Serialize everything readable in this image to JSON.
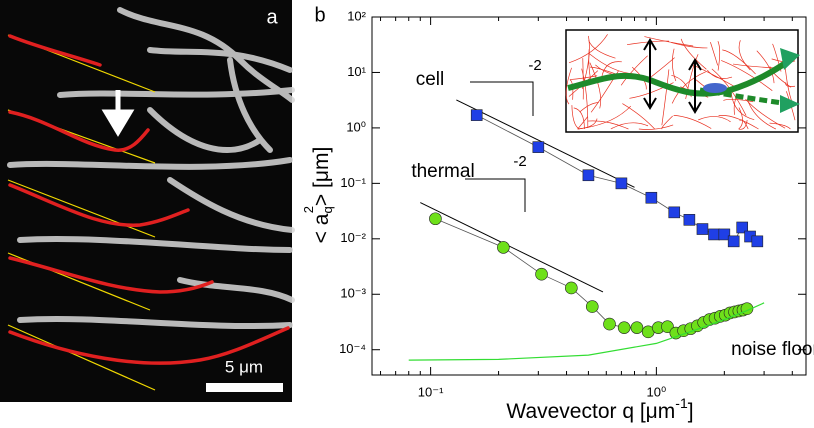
{
  "panel_a": {
    "label": "a",
    "scale_bar": "5 μm"
  },
  "chart_data": {
    "type": "scatter",
    "panel_label": "b",
    "x_label": {
      "text": "Wavevector q  [μm",
      "sup": "-1",
      "end": "]"
    },
    "y_label": {
      "left": "< a",
      "sub": "q",
      "sup": "2",
      "right": ">   [μm]"
    },
    "log_x": true,
    "log_y": true,
    "xlim": [
      0.055,
      4.6
    ],
    "ylim": [
      3.5e-05,
      100
    ],
    "xticks": [
      {
        "value": 0.1,
        "label": "10⁻¹"
      },
      {
        "value": 1,
        "label": "10⁰"
      }
    ],
    "yticks": [
      {
        "value": 0.0001,
        "label": "10⁻⁴"
      },
      {
        "value": 0.001,
        "label": "10⁻³"
      },
      {
        "value": 0.01,
        "label": "10⁻²"
      },
      {
        "value": 0.1,
        "label": "10⁻¹"
      },
      {
        "value": 1,
        "label": "10⁰"
      },
      {
        "value": 10,
        "label": "10¹"
      },
      {
        "value": 100,
        "label": "10²"
      }
    ],
    "series": [
      {
        "name": "cell",
        "color": "#1f3fe6",
        "marker": "square",
        "x": [
          0.16,
          0.3,
          0.5,
          0.7,
          0.95,
          1.2,
          1.4,
          1.6,
          1.8,
          2.0,
          2.2,
          2.4,
          2.6,
          2.8
        ],
        "values": [
          1.7,
          0.45,
          0.14,
          0.1,
          0.055,
          0.03,
          0.022,
          0.015,
          0.012,
          0.012,
          0.009,
          0.016,
          0.011,
          0.009
        ]
      },
      {
        "name": "thermal",
        "color": "#6ee01a",
        "marker": "circle",
        "x": [
          0.105,
          0.21,
          0.31,
          0.42,
          0.52,
          0.62,
          0.72,
          0.82,
          0.92,
          1.02,
          1.12,
          1.22,
          1.32,
          1.42,
          1.52,
          1.62,
          1.72,
          1.82,
          1.92,
          2.02,
          2.12,
          2.22,
          2.32,
          2.42,
          2.52
        ],
        "values": [
          0.023,
          0.007,
          0.0023,
          0.0013,
          0.0006,
          0.00029,
          0.00025,
          0.00025,
          0.00021,
          0.00025,
          0.00026,
          0.0002,
          0.00022,
          0.00024,
          0.00027,
          0.00031,
          0.00035,
          0.00037,
          0.0004,
          0.00042,
          0.00046,
          0.00048,
          0.0005,
          0.00052,
          0.00055
        ]
      },
      {
        "name": "noise floor",
        "color": "#33dd33",
        "marker": "line",
        "x": [
          0.08,
          0.2,
          0.5,
          1,
          1.5,
          2,
          2.5,
          3
        ],
        "values": [
          6.5e-05,
          6.7e-05,
          8e-05,
          0.00013,
          0.00023,
          0.00035,
          0.0005,
          0.0007
        ]
      }
    ],
    "guides": [
      {
        "x": [
          0.13,
          0.8
        ],
        "values": [
          3.2,
          0.085
        ]
      },
      {
        "x": [
          0.09,
          0.58
        ],
        "values": [
          0.045,
          0.0011
        ]
      }
    ],
    "annotations": [
      "-2",
      "-2"
    ]
  }
}
